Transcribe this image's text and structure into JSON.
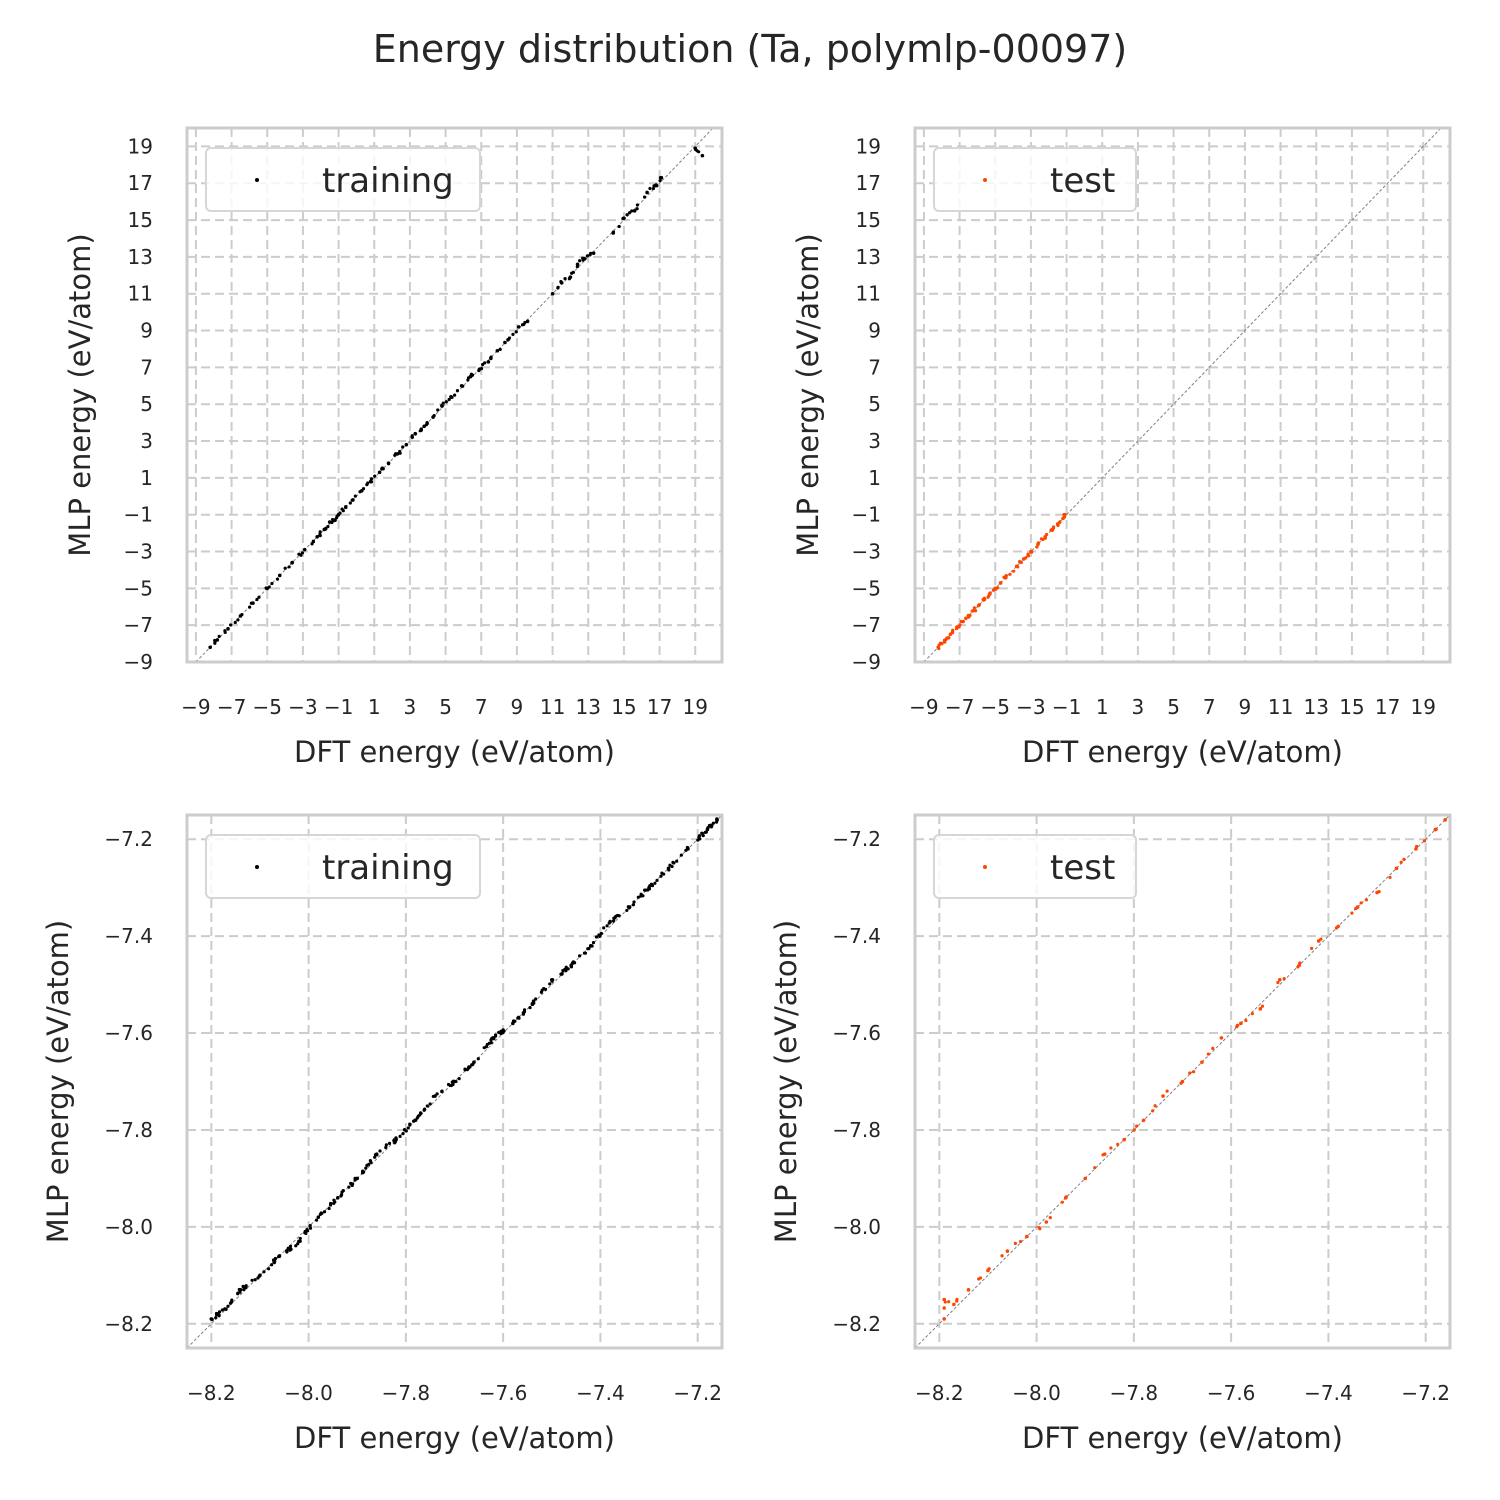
{
  "figure_title": "Energy distribution (Ta, polymlp-00097)",
  "colors": {
    "training": "#000000",
    "test": "#ff4500",
    "grid": "#cccccc",
    "frame": "#cccccc"
  },
  "chart_data": [
    {
      "type": "scatter",
      "panel": "top-left",
      "xlabel": "DFT energy (eV/atom)",
      "ylabel": "MLP energy (eV/atom)",
      "xlim": [
        -9.5,
        20.5
      ],
      "ylim": [
        -9.0,
        20.0
      ],
      "xticks": [
        -9,
        -7,
        -5,
        -3,
        -1,
        1,
        3,
        5,
        7,
        9,
        11,
        13,
        15,
        17,
        19
      ],
      "yticks": [
        -9,
        -7,
        -5,
        -3,
        -1,
        1,
        3,
        5,
        7,
        9,
        11,
        13,
        15,
        17,
        19
      ],
      "xtick_labels": [
        "−9",
        "−7",
        "−5",
        "−3",
        "−1",
        "1",
        "3",
        "5",
        "7",
        "9",
        "11",
        "13",
        "15",
        "17",
        "19"
      ],
      "ytick_labels": [
        "−9",
        "−7",
        "−5",
        "−3",
        "−1",
        "1",
        "3",
        "5",
        "7",
        "9",
        "11",
        "13",
        "15",
        "17",
        "19"
      ],
      "grid": true,
      "legend": "top-left",
      "series": [
        {
          "name": "training",
          "color": "#000000",
          "x": [
            -8.2,
            -7.8,
            -7.2,
            -6.5,
            -5.8,
            -5.0,
            -4.3,
            -3.6,
            -2.9,
            -2.2,
            -1.8,
            -1.5,
            -1.2,
            -1.0,
            -0.6,
            -0.2,
            0.3,
            0.8,
            1.3,
            1.8,
            2.3,
            2.8,
            3.3,
            3.8,
            4.3,
            4.8,
            5.3,
            5.9,
            6.4,
            6.9,
            7.4,
            7.9,
            8.5,
            9.1,
            9.6,
            11.0,
            11.5,
            12.0,
            12.4,
            12.8,
            13.3,
            14.4,
            15.0,
            15.6,
            16.3,
            16.8,
            17.1,
            19.0,
            19.4
          ],
          "y": [
            -8.2,
            -7.8,
            -7.2,
            -6.5,
            -5.8,
            -5.0,
            -4.3,
            -3.6,
            -2.9,
            -2.2,
            -1.8,
            -1.4,
            -1.3,
            -1.0,
            -0.6,
            -0.2,
            0.3,
            0.8,
            1.3,
            1.8,
            2.3,
            2.8,
            3.4,
            3.8,
            4.3,
            4.9,
            5.4,
            6.0,
            6.5,
            6.9,
            7.3,
            7.9,
            8.5,
            9.2,
            9.5,
            11.0,
            11.6,
            11.9,
            12.6,
            12.9,
            13.2,
            14.3,
            15.1,
            15.5,
            16.5,
            16.9,
            17.3,
            18.9,
            18.5
          ]
        }
      ]
    },
    {
      "type": "scatter",
      "panel": "top-right",
      "xlabel": "DFT energy (eV/atom)",
      "ylabel": "MLP energy (eV/atom)",
      "xlim": [
        -9.5,
        20.5
      ],
      "ylim": [
        -9.0,
        20.0
      ],
      "xticks": [
        -9,
        -7,
        -5,
        -3,
        -1,
        1,
        3,
        5,
        7,
        9,
        11,
        13,
        15,
        17,
        19
      ],
      "yticks": [
        -9,
        -7,
        -5,
        -3,
        -1,
        1,
        3,
        5,
        7,
        9,
        11,
        13,
        15,
        17,
        19
      ],
      "xtick_labels": [
        "−9",
        "−7",
        "−5",
        "−3",
        "−1",
        "1",
        "3",
        "5",
        "7",
        "9",
        "11",
        "13",
        "15",
        "17",
        "19"
      ],
      "ytick_labels": [
        "−9",
        "−7",
        "−5",
        "−3",
        "−1",
        "1",
        "3",
        "5",
        "7",
        "9",
        "11",
        "13",
        "15",
        "17",
        "19"
      ],
      "grid": true,
      "legend": "top-left",
      "series": [
        {
          "name": "test",
          "color": "#ff4500",
          "x": [
            -8.2,
            -8.0,
            -7.7,
            -7.4,
            -7.1,
            -6.8,
            -6.5,
            -6.2,
            -5.9,
            -5.6,
            -5.3,
            -5.0,
            -4.7,
            -4.4,
            -3.8,
            -3.4,
            -3.0,
            -2.6,
            -2.2,
            -1.8,
            -1.5,
            -1.2,
            -1.1
          ],
          "y": [
            -8.2,
            -8.0,
            -7.7,
            -7.4,
            -7.1,
            -6.8,
            -6.5,
            -6.2,
            -5.9,
            -5.6,
            -5.3,
            -5.0,
            -4.7,
            -4.4,
            -3.8,
            -3.4,
            -3.0,
            -2.6,
            -2.2,
            -1.8,
            -1.5,
            -1.2,
            -1.0
          ]
        }
      ]
    },
    {
      "type": "scatter",
      "panel": "bottom-left",
      "xlabel": "DFT energy (eV/atom)",
      "ylabel": "MLP energy (eV/atom)",
      "xlim": [
        -8.25,
        -7.15
      ],
      "ylim": [
        -8.25,
        -7.15
      ],
      "xticks": [
        -8.2,
        -8.0,
        -7.8,
        -7.6,
        -7.4,
        -7.2
      ],
      "yticks": [
        -8.2,
        -8.0,
        -7.8,
        -7.6,
        -7.4,
        -7.2
      ],
      "xtick_labels": [
        "−8.2",
        "−8.0",
        "−7.8",
        "−7.6",
        "−7.4",
        "−7.2"
      ],
      "ytick_labels": [
        "−8.2",
        "−8.0",
        "−7.8",
        "−7.6",
        "−7.4",
        "−7.2"
      ],
      "grid": true,
      "legend": "top-left",
      "series": [
        {
          "name": "training",
          "color": "#000000",
          "x": [
            -8.2,
            -8.17,
            -8.14,
            -8.1,
            -8.06,
            -8.02,
            -7.98,
            -7.94,
            -7.9,
            -7.86,
            -7.82,
            -7.78,
            -7.74,
            -7.7,
            -7.66,
            -7.62,
            -7.58,
            -7.54,
            -7.5,
            -7.46,
            -7.42,
            -7.38,
            -7.34,
            -7.3,
            -7.26,
            -7.22,
            -7.18,
            -7.16
          ],
          "y": [
            -8.19,
            -8.17,
            -8.13,
            -8.1,
            -8.06,
            -8.03,
            -7.98,
            -7.94,
            -7.9,
            -7.85,
            -7.82,
            -7.78,
            -7.73,
            -7.7,
            -7.66,
            -7.61,
            -7.58,
            -7.54,
            -7.49,
            -7.46,
            -7.42,
            -7.37,
            -7.34,
            -7.3,
            -7.26,
            -7.22,
            -7.18,
            -7.16
          ]
        }
      ]
    },
    {
      "type": "scatter",
      "panel": "bottom-right",
      "xlabel": "DFT energy (eV/atom)",
      "ylabel": "MLP energy (eV/atom)",
      "xlim": [
        -8.25,
        -7.15
      ],
      "ylim": [
        -8.25,
        -7.15
      ],
      "xticks": [
        -8.2,
        -8.0,
        -7.8,
        -7.6,
        -7.4,
        -7.2
      ],
      "yticks": [
        -8.2,
        -8.0,
        -7.8,
        -7.6,
        -7.4,
        -7.2
      ],
      "xtick_labels": [
        "−8.2",
        "−8.0",
        "−7.8",
        "−7.6",
        "−7.4",
        "−7.2"
      ],
      "ytick_labels": [
        "−8.2",
        "−8.0",
        "−7.8",
        "−7.6",
        "−7.4",
        "−7.2"
      ],
      "grid": true,
      "legend": "top-left",
      "series": [
        {
          "name": "test",
          "color": "#ff4500",
          "x": [
            -8.19,
            -8.19,
            -8.17,
            -8.14,
            -8.1,
            -8.06,
            -8.02,
            -7.98,
            -7.94,
            -7.9,
            -7.86,
            -7.82,
            -7.78,
            -7.74,
            -7.7,
            -7.66,
            -7.62,
            -7.58,
            -7.54,
            -7.5,
            -7.46,
            -7.42,
            -7.38,
            -7.34,
            -7.3,
            -7.26,
            -7.22,
            -7.18,
            -7.16
          ],
          "y": [
            -8.19,
            -8.15,
            -8.16,
            -8.13,
            -8.09,
            -8.05,
            -8.02,
            -7.99,
            -7.94,
            -7.9,
            -7.85,
            -7.82,
            -7.78,
            -7.73,
            -7.7,
            -7.66,
            -7.61,
            -7.58,
            -7.55,
            -7.49,
            -7.46,
            -7.41,
            -7.38,
            -7.34,
            -7.31,
            -7.26,
            -7.22,
            -7.18,
            -7.16
          ]
        }
      ]
    }
  ]
}
